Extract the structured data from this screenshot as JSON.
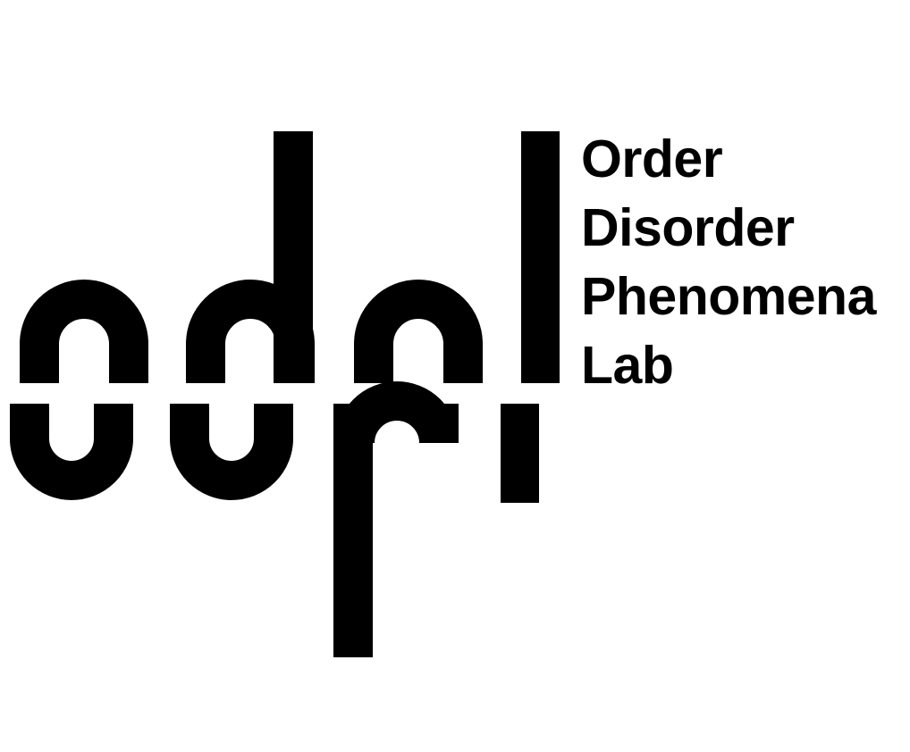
{
  "logo": {
    "mark_name": "odpl",
    "color": "#000000",
    "background": "#ffffff"
  },
  "wordmark": {
    "lines": [
      "Order",
      "Disorder",
      "Phenomena",
      "Lab"
    ]
  }
}
